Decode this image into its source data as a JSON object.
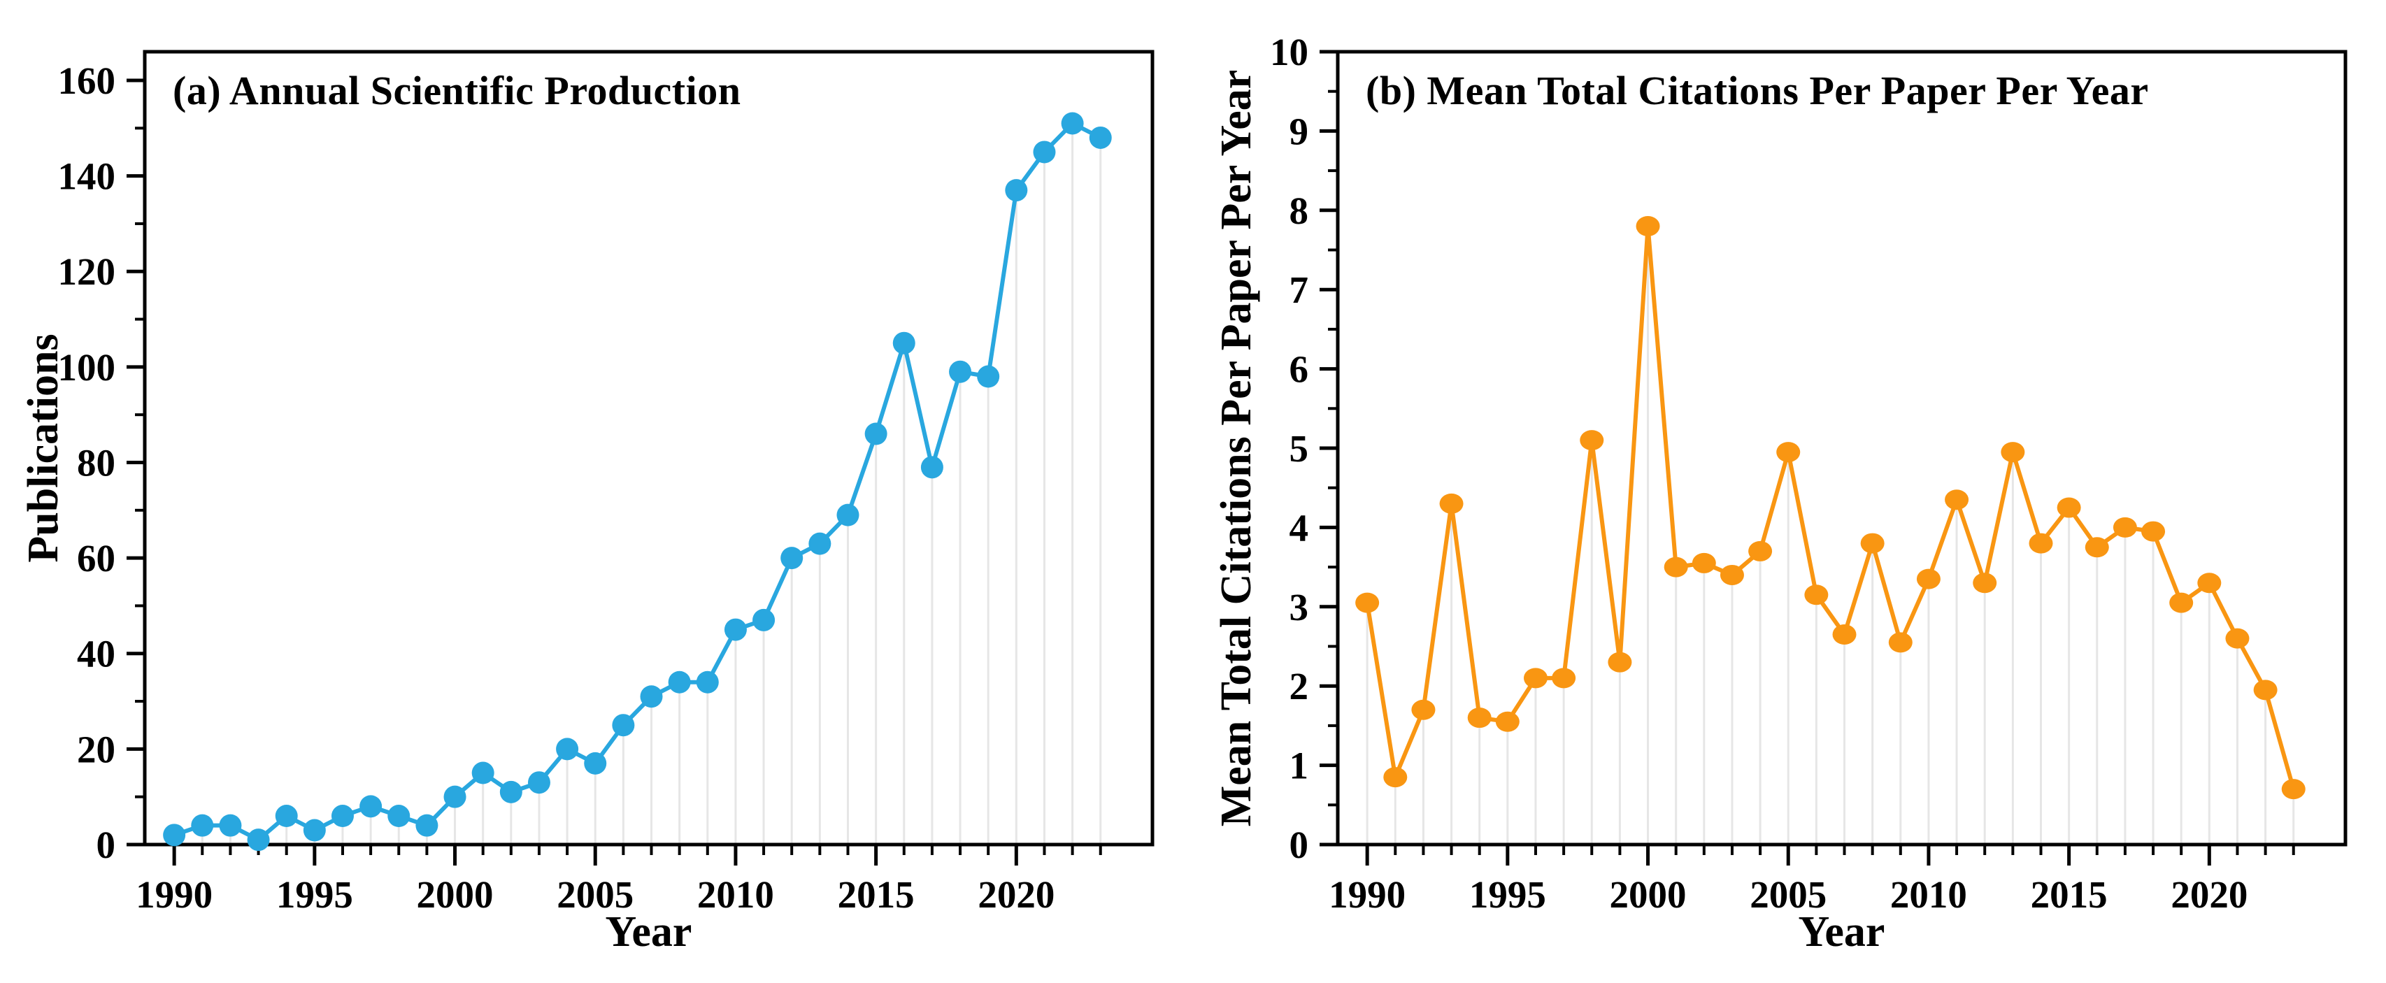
{
  "figure": {
    "background": "#ffffff",
    "text_color": "#000000",
    "frame_color": "#000000",
    "dropline_color": "#e6e6e6"
  },
  "chart_data": [
    {
      "type": "line",
      "panel_label": "a",
      "title": "(a) Annual Scientific Production",
      "xlabel": "Year",
      "ylabel": "Publications",
      "series_color": "#29A7DF",
      "marker": "circle",
      "marker_rx": 16,
      "marker_ry": 16,
      "line_width": 6,
      "grid": "vertical-droplines",
      "legend": "none",
      "xlim": [
        1988.95,
        2024.85
      ],
      "ylim": [
        0,
        166
      ],
      "yticks": [
        0,
        20,
        40,
        60,
        80,
        100,
        120,
        140,
        160
      ],
      "yminors": [
        10,
        30,
        50,
        70,
        90,
        110,
        130,
        150
      ],
      "xticks_labeled": [
        1990,
        1995,
        2000,
        2005,
        2010,
        2015,
        2020
      ],
      "x": [
        1990,
        1991,
        1992,
        1993,
        1994,
        1995,
        1996,
        1997,
        1998,
        1999,
        2000,
        2001,
        2002,
        2003,
        2004,
        2005,
        2006,
        2007,
        2008,
        2009,
        2010,
        2011,
        2012,
        2013,
        2014,
        2015,
        2016,
        2017,
        2018,
        2019,
        2020,
        2021,
        2022,
        2023
      ],
      "values": [
        2,
        4,
        4,
        1,
        6,
        3,
        6,
        8,
        6,
        4,
        10,
        15,
        11,
        13,
        20,
        17,
        25,
        31,
        34,
        34,
        45,
        47,
        60,
        63,
        69,
        86,
        105,
        79,
        99,
        98,
        137,
        145,
        151,
        148
      ]
    },
    {
      "type": "line",
      "panel_label": "b",
      "title": "(b) Mean Total Citations Per Paper Per Year",
      "xlabel": "Year",
      "ylabel": "Mean Total Citations Per Paper Per Year",
      "series_color": "#F99612",
      "marker": "ellipse",
      "marker_rx": 17,
      "marker_ry": 14.5,
      "line_width": 6,
      "grid": "vertical-droplines",
      "legend": "none",
      "xlim": [
        1988.95,
        2024.85
      ],
      "ylim": [
        0,
        10
      ],
      "yticks": [
        0,
        1,
        2,
        3,
        4,
        5,
        6,
        7,
        8,
        9,
        10
      ],
      "yminors": [
        0.5,
        1.5,
        2.5,
        3.5,
        4.5,
        5.5,
        6.5,
        7.5,
        8.5,
        9.5
      ],
      "xticks_labeled": [
        1990,
        1995,
        2000,
        2005,
        2010,
        2015,
        2020
      ],
      "x": [
        1990,
        1991,
        1992,
        1993,
        1994,
        1995,
        1996,
        1997,
        1998,
        1999,
        2000,
        2001,
        2002,
        2003,
        2004,
        2005,
        2006,
        2007,
        2008,
        2009,
        2010,
        2011,
        2012,
        2013,
        2014,
        2015,
        2016,
        2017,
        2018,
        2019,
        2020,
        2021,
        2022,
        2023
      ],
      "values": [
        3.05,
        0.85,
        1.7,
        4.3,
        1.6,
        1.55,
        2.1,
        2.1,
        5.1,
        2.3,
        7.8,
        3.5,
        3.55,
        3.4,
        3.7,
        4.95,
        3.15,
        2.65,
        3.8,
        2.55,
        3.35,
        4.35,
        3.3,
        4.95,
        3.8,
        4.25,
        3.75,
        4.0,
        3.95,
        3.05,
        3.3,
        2.6,
        1.95,
        0.7
      ]
    }
  ]
}
